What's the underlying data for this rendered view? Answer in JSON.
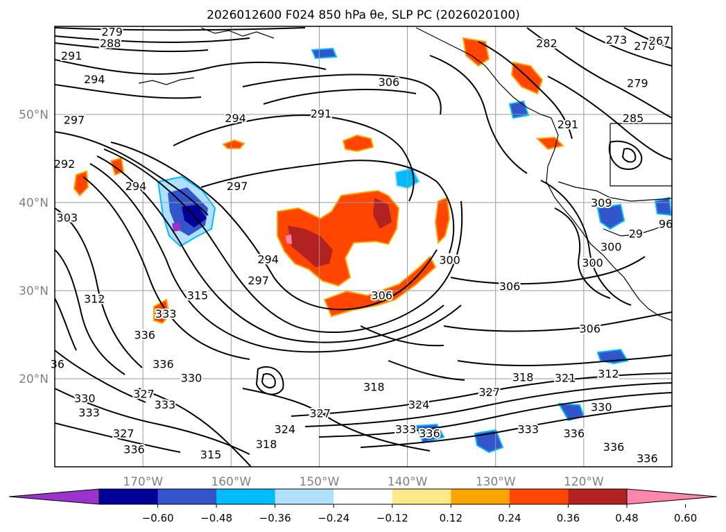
{
  "chart_data": {
    "type": "heatmap",
    "title": "2026012600 F024 850 hPa θe, SLP PC (2026020100)",
    "x_axis": {
      "ticks": [
        {
          "label": "170°W",
          "lon": -170
        },
        {
          "label": "160°W",
          "lon": -160
        },
        {
          "label": "150°W",
          "lon": -150
        },
        {
          "label": "140°W",
          "lon": -140
        },
        {
          "label": "130°W",
          "lon": -130
        },
        {
          "label": "120°W",
          "lon": -120
        }
      ],
      "range": [
        -180,
        -110
      ]
    },
    "y_axis": {
      "ticks": [
        {
          "label": "50°N",
          "lat": 50
        },
        {
          "label": "40°N",
          "lat": 40
        },
        {
          "label": "30°N",
          "lat": 30
        },
        {
          "label": "20°N",
          "lat": 20
        }
      ],
      "range": [
        10,
        60
      ]
    },
    "grid": true,
    "colorbar": {
      "orientation": "horizontal",
      "extend": "both",
      "ticks": [
        "−0.60",
        "−0.48",
        "−0.36",
        "−0.24",
        "−0.12",
        "0.12",
        "0.24",
        "0.36",
        "0.48",
        "0.60"
      ],
      "bins": [
        {
          "range": "< −0.60",
          "color": "#9933cc"
        },
        {
          "range": "−0.60 to −0.48",
          "color": "#000099"
        },
        {
          "range": "−0.48 to −0.36",
          "color": "#3355cc"
        },
        {
          "range": "−0.36 to −0.24",
          "color": "#00bbff"
        },
        {
          "range": "−0.24 to −0.12",
          "color": "#b0e0ff"
        },
        {
          "range": "−0.12 to 0.12",
          "color": "#ffffff"
        },
        {
          "range": "0.12 to 0.24",
          "color": "#ffe88a"
        },
        {
          "range": "0.24 to 0.36",
          "color": "#ffa500"
        },
        {
          "range": "0.36 to 0.48",
          "color": "#ff4500"
        },
        {
          "range": "0.48 to 0.60",
          "color": "#b22222"
        },
        {
          "range": "> 0.60",
          "color": "#ff88aa"
        }
      ]
    },
    "contour_labels": [
      {
        "text": "279",
        "lon": -173.5,
        "lat": 59.4
      },
      {
        "text": "288",
        "lon": -173.7,
        "lat": 58.1
      },
      {
        "text": "291",
        "lon": -178.1,
        "lat": 56.7
      },
      {
        "text": "294",
        "lon": -175.5,
        "lat": 54.0
      },
      {
        "text": "297",
        "lon": -177.8,
        "lat": 49.4
      },
      {
        "text": "294",
        "lon": -170.8,
        "lat": 41.9
      },
      {
        "text": "292",
        "lon": -178.9,
        "lat": 44.4
      },
      {
        "text": "303",
        "lon": -178.6,
        "lat": 38.3
      },
      {
        "text": "312",
        "lon": -175.5,
        "lat": 29.1
      },
      {
        "text": "294",
        "lon": -159.5,
        "lat": 49.6
      },
      {
        "text": "297",
        "lon": -159.3,
        "lat": 41.9
      },
      {
        "text": "291",
        "lon": -149.8,
        "lat": 50.1
      },
      {
        "text": "306",
        "lon": -142.1,
        "lat": 53.7
      },
      {
        "text": "294",
        "lon": -155.8,
        "lat": 33.6
      },
      {
        "text": "297",
        "lon": -156.9,
        "lat": 31.2
      },
      {
        "text": "315",
        "lon": -163.8,
        "lat": 29.5
      },
      {
        "text": "333",
        "lon": -167.4,
        "lat": 27.4
      },
      {
        "text": "336",
        "lon": -169.8,
        "lat": 25.0
      },
      {
        "text": "336",
        "lon": -167.7,
        "lat": 21.7
      },
      {
        "text": "330",
        "lon": -164.5,
        "lat": 20.1
      },
      {
        "text": "327",
        "lon": -169.9,
        "lat": 18.3
      },
      {
        "text": "330",
        "lon": -176.6,
        "lat": 17.8
      },
      {
        "text": "333",
        "lon": -167.5,
        "lat": 17.1
      },
      {
        "text": "333",
        "lon": -176.1,
        "lat": 16.2
      },
      {
        "text": "327",
        "lon": -172.2,
        "lat": 13.8
      },
      {
        "text": "336",
        "lon": -171.0,
        "lat": 12.0
      },
      {
        "text": "315",
        "lon": -162.3,
        "lat": 11.4
      },
      {
        "text": "318",
        "lon": -156.0,
        "lat": 12.6
      },
      {
        "text": "324",
        "lon": -153.9,
        "lat": 14.3
      },
      {
        "text": "327",
        "lon": -149.9,
        "lat": 16.1
      },
      {
        "text": "318",
        "lon": -143.8,
        "lat": 19.1
      },
      {
        "text": "324",
        "lon": -138.7,
        "lat": 17.1
      },
      {
        "text": "333",
        "lon": -140.2,
        "lat": 14.3
      },
      {
        "text": "336",
        "lon": -137.5,
        "lat": 13.8
      },
      {
        "text": "327",
        "lon": -130.7,
        "lat": 18.5
      },
      {
        "text": "318",
        "lon": -126.9,
        "lat": 20.2
      },
      {
        "text": "321",
        "lon": -122.1,
        "lat": 20.1
      },
      {
        "text": "312",
        "lon": -117.2,
        "lat": 20.6
      },
      {
        "text": "330",
        "lon": -118.0,
        "lat": 16.8
      },
      {
        "text": "333",
        "lon": -126.3,
        "lat": 14.3
      },
      {
        "text": "336",
        "lon": -121.1,
        "lat": 13.8
      },
      {
        "text": "336",
        "lon": -116.6,
        "lat": 12.3
      },
      {
        "text": "336",
        "lon": -112.8,
        "lat": 11.0
      },
      {
        "text": "306",
        "lon": -142.9,
        "lat": 29.5
      },
      {
        "text": "306",
        "lon": -128.4,
        "lat": 30.5
      },
      {
        "text": "306",
        "lon": -119.3,
        "lat": 25.7
      },
      {
        "text": "300",
        "lon": -135.2,
        "lat": 33.5
      },
      {
        "text": "309",
        "lon": -118.0,
        "lat": 40.0
      },
      {
        "text": "300",
        "lon": -116.9,
        "lat": 35.0
      },
      {
        "text": "300",
        "lon": -119.0,
        "lat": 33.2
      },
      {
        "text": "291",
        "lon": -121.8,
        "lat": 48.9
      },
      {
        "text": "282",
        "lon": -124.2,
        "lat": 58.1
      },
      {
        "text": "273",
        "lon": -116.3,
        "lat": 58.5
      },
      {
        "text": "270",
        "lon": -113.1,
        "lat": 57.8
      },
      {
        "text": "267",
        "lon": -111.4,
        "lat": 58.4
      },
      {
        "text": "279",
        "lon": -113.9,
        "lat": 53.6
      },
      {
        "text": "285",
        "lon": -114.4,
        "lat": 49.6
      },
      {
        "text": "29",
        "lon": -114.1,
        "lat": 36.5
      },
      {
        "text": "96",
        "lon": -110.7,
        "lat": 37.6
      },
      {
        "text": "36",
        "lon": -179.7,
        "lat": 21.7
      }
    ]
  }
}
